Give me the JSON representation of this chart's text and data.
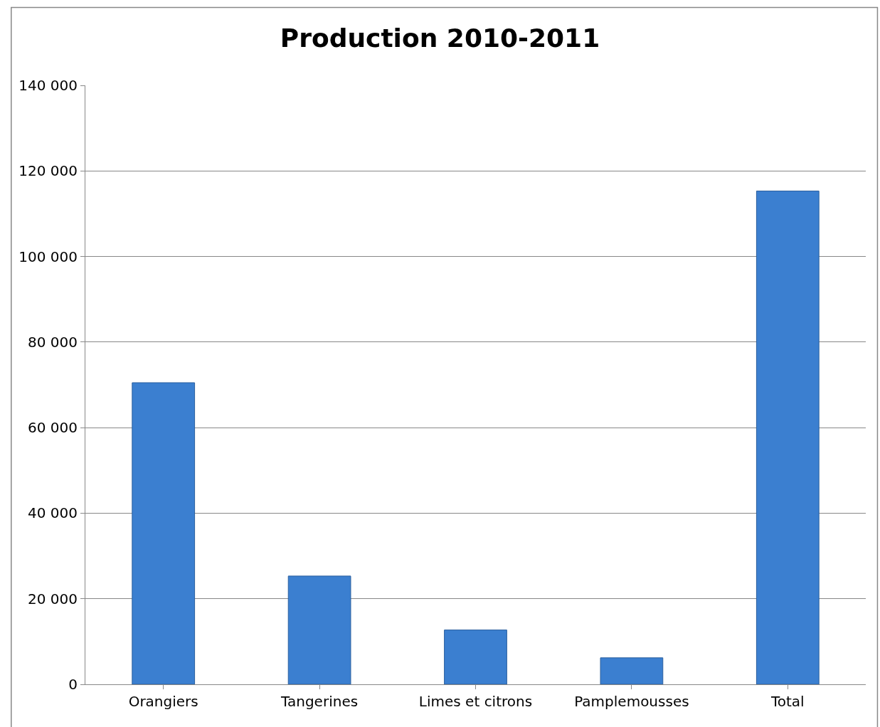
{
  "chart_data": {
    "type": "bar",
    "title": "Production 2010-2011",
    "categories": [
      "Orangiers",
      "Tangerines",
      "Limes et citrons",
      "Pamplemousses",
      "Total"
    ],
    "values": [
      70500,
      25300,
      12700,
      6200,
      115300
    ],
    "color": "#3b7fd0",
    "ylim": [
      0,
      140000
    ],
    "yticks": [
      {
        "value": 0,
        "label": "0"
      },
      {
        "value": 20000,
        "label": "20 000"
      },
      {
        "value": 40000,
        "label": "40 000"
      },
      {
        "value": 60000,
        "label": "60 000"
      },
      {
        "value": 80000,
        "label": "80 000"
      },
      {
        "value": 100000,
        "label": "100 000"
      },
      {
        "value": 120000,
        "label": "120 000"
      },
      {
        "value": 140000,
        "label": "140 000"
      }
    ],
    "grid": "y",
    "legend": false
  }
}
